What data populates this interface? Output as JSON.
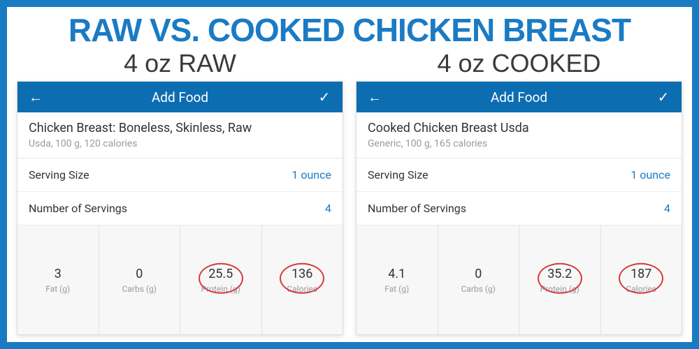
{
  "title": "RAW VS. COOKED CHICKEN BREAST",
  "title_color": "#1a7bc4",
  "border_color": "#1a7bc4",
  "topbar_color": "#0d6db1",
  "accent_text_color": "#1a7bc4",
  "circle_color": "#d63b3b",
  "panels": [
    {
      "heading": "4 oz RAW",
      "topbar": {
        "title": "Add Food"
      },
      "food": {
        "name": "Chicken Breast: Boneless, Skinless, Raw",
        "sub": "Usda, 100 g, 120 calories"
      },
      "serving_label": "Serving Size",
      "serving_value": "1 ounce",
      "servings_label": "Number of Servings",
      "servings_value": "4",
      "macros": [
        {
          "value": "3",
          "label": "Fat (g)",
          "circled": false
        },
        {
          "value": "0",
          "label": "Carbs (g)",
          "circled": false
        },
        {
          "value": "25.5",
          "label": "Protein (g)",
          "circled": true
        },
        {
          "value": "136",
          "label": "Calories",
          "circled": true
        }
      ]
    },
    {
      "heading": "4 oz COOKED",
      "topbar": {
        "title": "Add Food"
      },
      "food": {
        "name": "Cooked Chicken Breast Usda",
        "sub": "Generic, 100 g, 165 calories"
      },
      "serving_label": "Serving Size",
      "serving_value": "1 ounce",
      "servings_label": "Number of Servings",
      "servings_value": "4",
      "macros": [
        {
          "value": "4.1",
          "label": "Fat (g)",
          "circled": false
        },
        {
          "value": "0",
          "label": "Carbs (g)",
          "circled": false
        },
        {
          "value": "35.2",
          "label": "Protein (g)",
          "circled": true
        },
        {
          "value": "187",
          "label": "Calories",
          "circled": true
        }
      ]
    }
  ]
}
